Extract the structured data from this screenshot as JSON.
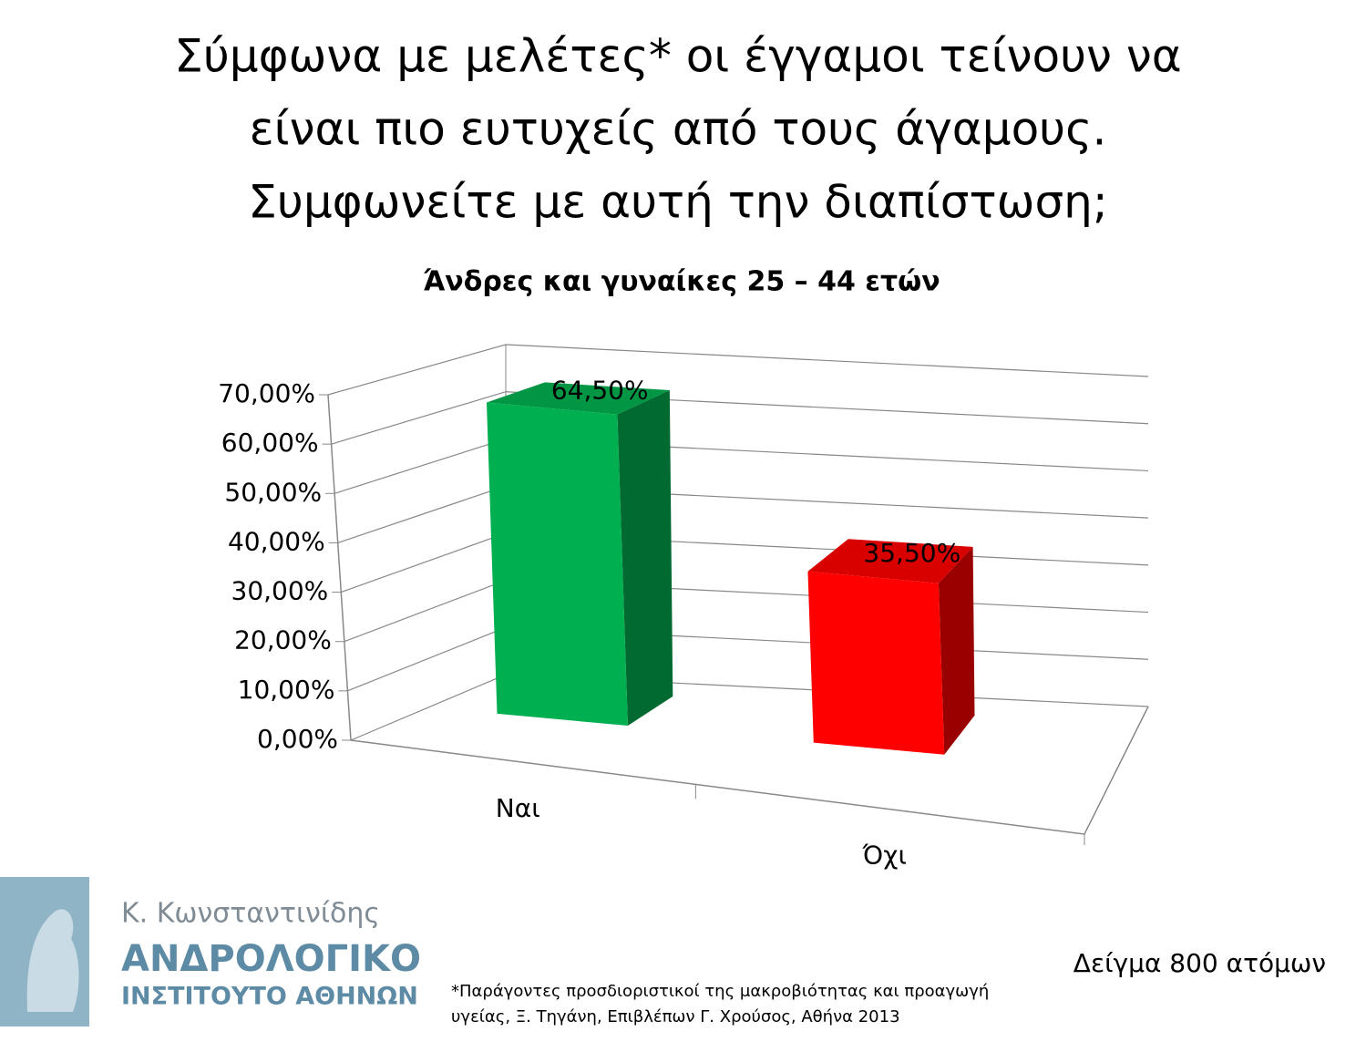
{
  "chart_data": {
    "type": "bar3d",
    "title": [
      "Σύμφωνα με μελέτες* οι έγγαμοι τείνουν να",
      "είναι πιο ευτυχείς από τους άγαμους.",
      "Συμφωνείτε με αυτή την διαπίστωση;"
    ],
    "subtitle": "Άνδρες και γυναίκες 25 – 44 ετών",
    "categories": [
      "Ναι",
      "Όχι"
    ],
    "values": [
      64.5,
      35.5
    ],
    "value_labels": [
      "64,50%",
      "35,50%"
    ],
    "colors": [
      "#00b050",
      "#ff0000"
    ],
    "ylim": [
      0,
      70
    ],
    "yticks": [
      {
        "value": 0,
        "label": "0,00%"
      },
      {
        "value": 10,
        "label": "10,00%"
      },
      {
        "value": 20,
        "label": "20,00%"
      },
      {
        "value": 30,
        "label": "30,00%"
      },
      {
        "value": 40,
        "label": "40,00%"
      },
      {
        "value": 50,
        "label": "50,00%"
      },
      {
        "value": 60,
        "label": "60,00%"
      },
      {
        "value": 70,
        "label": "70,00%"
      }
    ],
    "grid": true
  },
  "footer": {
    "author": "Κ. Κωνσταντινίδης",
    "institute_1": "ΑΝΔΡΟΛΟΓΙΚΟ",
    "institute_2": "ΙΝΣΤΙΤΟΥΤΟ ΑΘΗΝΩΝ",
    "footnote": [
      "*Παράγοντες προσδιοριστικοί της μακροβιότητας και προαγωγή",
      "υγείας, Ξ. Τηγάνη, Επιβλέπων Γ. Χρούσος, Αθήνα 2013"
    ],
    "sample": "Δείγμα 800 ατόμων"
  }
}
